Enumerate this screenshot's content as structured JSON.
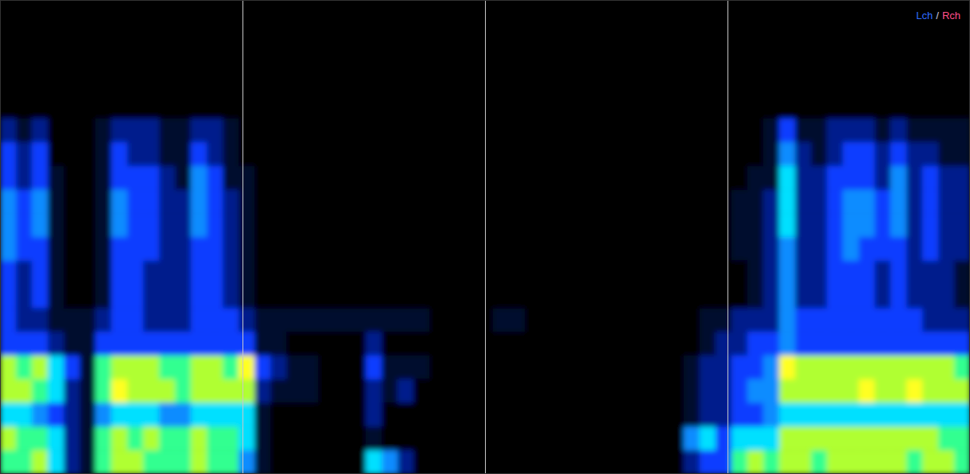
{
  "chart_data": {
    "type": "heatmap",
    "annotations": [
      "Lch",
      "/",
      "Rch"
    ],
    "xlim": [
      0,
      61
    ],
    "ylim": [
      0,
      20
    ],
    "xticks": [
      15.25,
      30.5,
      45.75
    ],
    "grid": true,
    "tick_labels": false,
    "x": [
      0,
      1,
      2,
      3,
      4,
      5,
      6,
      7,
      8,
      9,
      10,
      11,
      12,
      13,
      14,
      15,
      16,
      17,
      18,
      19,
      20,
      21,
      22,
      23,
      24,
      25,
      26,
      27,
      28,
      29,
      30,
      31,
      32,
      33,
      34,
      35,
      36,
      37,
      38,
      39,
      40,
      41,
      42,
      43,
      44,
      45,
      46,
      47,
      48,
      49,
      50,
      51,
      52,
      53,
      54,
      55,
      56,
      57,
      58,
      59,
      60
    ],
    "y": [
      19,
      18,
      17,
      16,
      15,
      14,
      13,
      12,
      11,
      10,
      9,
      8,
      7,
      6,
      5,
      4,
      3,
      2,
      1,
      0
    ],
    "cells": [
      [
        0,
        0,
        0,
        0,
        0,
        0,
        0,
        0,
        0,
        0,
        0,
        0,
        0,
        0,
        0,
        0,
        0,
        0,
        0,
        0,
        0,
        0,
        0,
        0,
        0,
        0,
        0,
        0,
        0,
        0,
        0,
        0,
        0,
        0,
        0,
        0,
        0,
        0,
        0,
        0,
        0,
        0,
        0,
        0,
        0,
        0,
        0,
        0,
        0,
        0,
        0,
        0,
        0,
        0,
        0,
        0,
        0,
        0,
        0,
        0,
        0
      ],
      [
        0,
        0,
        0,
        0,
        0,
        0,
        0,
        0,
        0,
        0,
        0,
        0,
        0,
        0,
        0,
        0,
        0,
        0,
        0,
        0,
        0,
        0,
        0,
        0,
        0,
        0,
        0,
        0,
        0,
        0,
        0,
        0,
        0,
        0,
        0,
        0,
        0,
        0,
        0,
        0,
        0,
        0,
        0,
        0,
        0,
        0,
        0,
        0,
        0,
        0,
        0,
        0,
        0,
        0,
        0,
        0,
        0,
        0,
        0,
        0,
        0
      ],
      [
        0,
        0,
        0,
        0,
        0,
        0,
        0,
        0,
        0,
        0,
        0,
        0,
        0,
        0,
        0,
        0,
        0,
        0,
        0,
        0,
        0,
        0,
        0,
        0,
        0,
        0,
        0,
        0,
        0,
        0,
        0,
        0,
        0,
        0,
        0,
        0,
        0,
        0,
        0,
        0,
        0,
        0,
        0,
        0,
        0,
        0,
        0,
        0,
        0,
        0,
        0,
        0,
        0,
        0,
        0,
        0,
        0,
        0,
        0,
        0,
        0
      ],
      [
        0,
        0,
        0,
        0,
        0,
        0,
        0,
        0,
        0,
        0,
        0,
        0,
        0,
        0,
        0,
        0,
        0,
        0,
        0,
        0,
        0,
        0,
        0,
        0,
        0,
        0,
        0,
        0,
        0,
        0,
        0,
        0,
        0,
        0,
        0,
        0,
        0,
        0,
        0,
        0,
        0,
        0,
        0,
        0,
        0,
        0,
        0,
        0,
        0,
        0,
        0,
        0,
        0,
        0,
        0,
        0,
        0,
        0,
        0,
        0,
        0
      ],
      [
        0,
        0,
        0,
        0,
        0,
        0,
        0,
        0,
        0,
        0,
        0,
        0,
        0,
        0,
        0,
        0,
        0,
        0,
        0,
        0,
        0,
        0,
        0,
        0,
        0,
        0,
        0,
        0,
        0,
        0,
        0,
        0,
        0,
        0,
        0,
        0,
        0,
        0,
        0,
        0,
        0,
        0,
        0,
        0,
        0,
        0,
        0,
        0,
        0,
        0,
        0,
        0,
        0,
        0,
        0,
        0,
        0,
        0,
        0,
        0,
        0
      ],
      [
        2,
        1,
        2,
        0,
        0,
        0,
        1,
        2,
        2,
        2,
        1,
        1,
        2,
        2,
        1,
        0,
        0,
        0,
        0,
        0,
        0,
        0,
        0,
        0,
        0,
        0,
        0,
        0,
        0,
        0,
        0,
        0,
        0,
        0,
        0,
        0,
        0,
        0,
        0,
        0,
        0,
        0,
        0,
        0,
        0,
        0,
        0,
        0,
        1,
        3,
        1,
        1,
        2,
        2,
        2,
        1,
        2,
        1,
        1,
        1,
        1
      ],
      [
        3,
        2,
        3,
        0,
        0,
        0,
        1,
        3,
        2,
        2,
        1,
        1,
        3,
        2,
        1,
        0,
        0,
        0,
        0,
        0,
        0,
        0,
        0,
        0,
        0,
        0,
        0,
        0,
        0,
        0,
        0,
        0,
        0,
        0,
        0,
        0,
        0,
        0,
        0,
        0,
        0,
        0,
        0,
        0,
        0,
        0,
        0,
        0,
        1,
        4,
        2,
        1,
        2,
        3,
        3,
        2,
        3,
        2,
        2,
        1,
        1
      ],
      [
        3,
        2,
        3,
        1,
        0,
        0,
        1,
        3,
        3,
        3,
        2,
        1,
        4,
        3,
        1,
        1,
        0,
        0,
        0,
        0,
        0,
        0,
        0,
        0,
        0,
        0,
        0,
        0,
        0,
        0,
        0,
        0,
        0,
        0,
        0,
        0,
        0,
        0,
        0,
        0,
        0,
        0,
        0,
        0,
        0,
        0,
        0,
        1,
        1,
        5,
        2,
        2,
        3,
        3,
        3,
        2,
        4,
        2,
        3,
        2,
        2
      ],
      [
        4,
        3,
        4,
        1,
        0,
        0,
        1,
        4,
        3,
        3,
        2,
        2,
        4,
        3,
        2,
        1,
        0,
        0,
        0,
        0,
        0,
        0,
        0,
        0,
        0,
        0,
        0,
        0,
        0,
        0,
        0,
        0,
        0,
        0,
        0,
        0,
        0,
        0,
        0,
        0,
        0,
        0,
        0,
        0,
        0,
        0,
        1,
        1,
        2,
        5,
        2,
        2,
        3,
        4,
        4,
        3,
        4,
        2,
        3,
        2,
        2
      ],
      [
        4,
        3,
        4,
        1,
        0,
        0,
        1,
        4,
        3,
        3,
        2,
        2,
        4,
        3,
        2,
        1,
        0,
        0,
        0,
        0,
        0,
        0,
        0,
        0,
        0,
        0,
        0,
        0,
        0,
        0,
        0,
        0,
        0,
        0,
        0,
        0,
        0,
        0,
        0,
        0,
        0,
        0,
        0,
        0,
        0,
        0,
        1,
        1,
        2,
        5,
        2,
        2,
        3,
        4,
        4,
        3,
        4,
        2,
        3,
        2,
        2
      ],
      [
        4,
        3,
        3,
        1,
        0,
        0,
        1,
        3,
        3,
        3,
        2,
        2,
        3,
        3,
        2,
        1,
        0,
        0,
        0,
        0,
        0,
        0,
        0,
        0,
        0,
        0,
        0,
        0,
        0,
        0,
        0,
        0,
        0,
        0,
        0,
        0,
        0,
        0,
        0,
        0,
        0,
        0,
        0,
        0,
        0,
        0,
        1,
        1,
        2,
        4,
        2,
        2,
        3,
        4,
        3,
        3,
        3,
        2,
        3,
        2,
        2
      ],
      [
        3,
        2,
        3,
        1,
        0,
        0,
        1,
        3,
        3,
        2,
        2,
        2,
        3,
        3,
        2,
        1,
        0,
        0,
        0,
        0,
        0,
        0,
        0,
        0,
        0,
        0,
        0,
        0,
        0,
        0,
        0,
        0,
        0,
        0,
        0,
        0,
        0,
        0,
        0,
        0,
        0,
        0,
        0,
        0,
        0,
        0,
        0,
        1,
        2,
        4,
        2,
        2,
        3,
        3,
        3,
        2,
        3,
        2,
        2,
        2,
        1
      ],
      [
        3,
        2,
        3,
        1,
        0,
        0,
        1,
        3,
        3,
        2,
        2,
        2,
        3,
        3,
        2,
        1,
        0,
        0,
        0,
        0,
        0,
        0,
        0,
        0,
        0,
        0,
        0,
        0,
        0,
        0,
        0,
        0,
        0,
        0,
        0,
        0,
        0,
        0,
        0,
        0,
        0,
        0,
        0,
        0,
        0,
        0,
        0,
        1,
        2,
        4,
        2,
        2,
        3,
        3,
        3,
        2,
        3,
        2,
        2,
        2,
        1
      ],
      [
        3,
        2,
        2,
        1,
        1,
        1,
        2,
        3,
        3,
        2,
        2,
        2,
        3,
        3,
        3,
        2,
        1,
        1,
        1,
        1,
        1,
        1,
        1,
        1,
        1,
        1,
        1,
        0,
        0,
        0,
        0,
        1,
        1,
        0,
        0,
        0,
        0,
        0,
        0,
        0,
        0,
        0,
        0,
        0,
        1,
        1,
        2,
        2,
        2,
        4,
        3,
        3,
        3,
        3,
        3,
        3,
        3,
        3,
        2,
        2,
        2
      ],
      [
        3,
        3,
        3,
        2,
        1,
        1,
        3,
        3,
        3,
        3,
        3,
        3,
        3,
        3,
        3,
        3,
        1,
        1,
        0,
        0,
        0,
        0,
        0,
        2,
        0,
        0,
        0,
        0,
        0,
        0,
        0,
        0,
        0,
        0,
        0,
        0,
        0,
        0,
        0,
        0,
        0,
        0,
        0,
        0,
        1,
        2,
        2,
        3,
        3,
        4,
        3,
        3,
        3,
        3,
        3,
        3,
        3,
        3,
        3,
        3,
        3
      ],
      [
        7,
        6,
        7,
        5,
        3,
        1,
        6,
        7,
        7,
        7,
        6,
        6,
        7,
        7,
        6,
        8,
        3,
        2,
        1,
        1,
        0,
        0,
        0,
        3,
        1,
        1,
        1,
        0,
        0,
        0,
        0,
        0,
        0,
        0,
        0,
        0,
        0,
        0,
        0,
        0,
        0,
        0,
        0,
        1,
        2,
        2,
        3,
        3,
        4,
        8,
        7,
        7,
        7,
        7,
        7,
        7,
        7,
        7,
        7,
        7,
        6
      ],
      [
        7,
        7,
        6,
        5,
        2,
        1,
        6,
        8,
        7,
        7,
        7,
        6,
        7,
        7,
        7,
        7,
        2,
        1,
        1,
        1,
        0,
        0,
        0,
        2,
        1,
        2,
        0,
        0,
        0,
        0,
        0,
        0,
        0,
        0,
        0,
        0,
        0,
        0,
        0,
        0,
        0,
        0,
        0,
        1,
        2,
        2,
        3,
        4,
        4,
        7,
        7,
        7,
        7,
        7,
        8,
        7,
        7,
        8,
        7,
        7,
        7
      ],
      [
        5,
        5,
        4,
        3,
        2,
        1,
        4,
        5,
        5,
        5,
        4,
        4,
        5,
        5,
        5,
        5,
        1,
        0,
        0,
        0,
        0,
        0,
        0,
        2,
        0,
        0,
        0,
        0,
        0,
        0,
        0,
        0,
        0,
        0,
        0,
        0,
        0,
        0,
        0,
        0,
        0,
        0,
        0,
        1,
        2,
        2,
        3,
        3,
        4,
        5,
        5,
        5,
        5,
        5,
        5,
        5,
        5,
        5,
        5,
        5,
        5
      ],
      [
        7,
        6,
        6,
        5,
        2,
        1,
        6,
        7,
        6,
        7,
        6,
        6,
        7,
        6,
        6,
        5,
        1,
        0,
        0,
        0,
        0,
        0,
        0,
        1,
        0,
        0,
        0,
        0,
        0,
        0,
        0,
        0,
        0,
        0,
        0,
        0,
        0,
        0,
        0,
        0,
        0,
        0,
        0,
        4,
        5,
        3,
        5,
        5,
        5,
        7,
        7,
        7,
        7,
        7,
        7,
        7,
        7,
        7,
        7,
        6,
        6
      ],
      [
        6,
        6,
        7,
        5,
        2,
        1,
        6,
        7,
        7,
        6,
        6,
        6,
        7,
        6,
        6,
        4,
        1,
        0,
        0,
        0,
        0,
        0,
        0,
        5,
        4,
        2,
        0,
        0,
        0,
        0,
        0,
        0,
        0,
        0,
        0,
        0,
        0,
        0,
        0,
        0,
        0,
        0,
        0,
        2,
        3,
        3,
        6,
        7,
        6,
        7,
        7,
        6,
        7,
        7,
        7,
        7,
        7,
        6,
        7,
        7,
        6
      ]
    ]
  }
}
